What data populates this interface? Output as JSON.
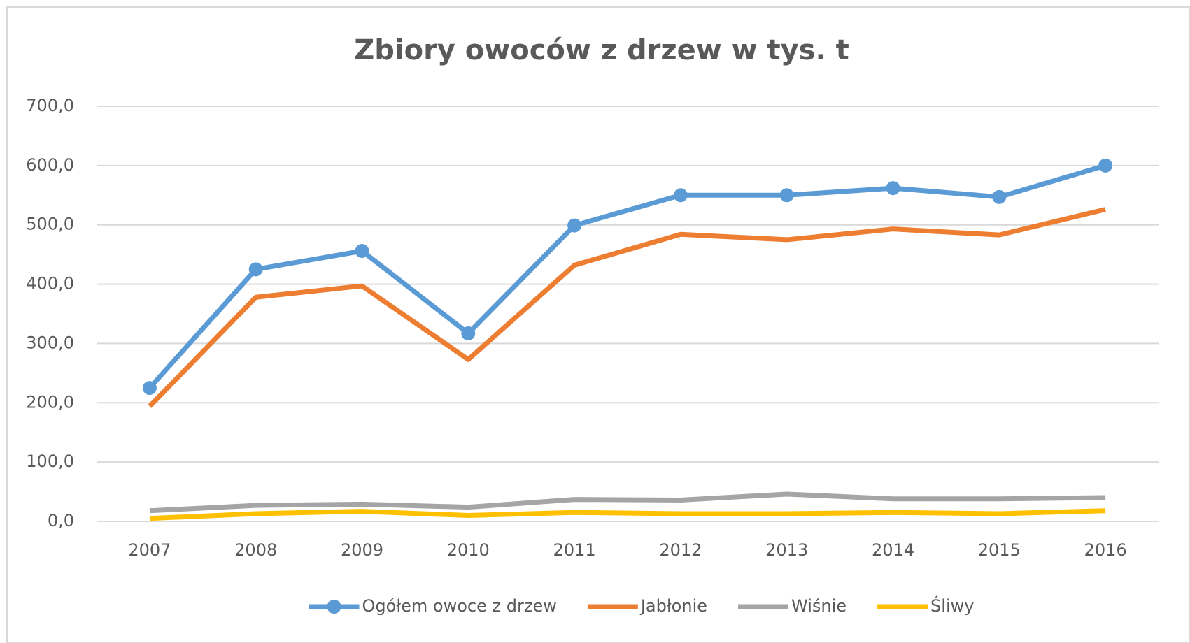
{
  "chart_data": {
    "type": "line",
    "title": "Zbiory owoców z drzew w tys. t",
    "categories": [
      "2007",
      "2008",
      "2009",
      "2010",
      "2011",
      "2012",
      "2013",
      "2014",
      "2015",
      "2016"
    ],
    "series": [
      {
        "name": "Ogółem owoce z drzew",
        "color": "#5b9bd5",
        "marker": "circle",
        "values": [
          225,
          425,
          456,
          317,
          499,
          550,
          550,
          562,
          547,
          600
        ]
      },
      {
        "name": "Jabłonie",
        "color": "#ed7d31",
        "values": [
          194,
          378,
          397,
          273,
          432,
          484,
          475,
          493,
          483,
          526
        ]
      },
      {
        "name": "Wiśnie",
        "color": "#a5a5a5",
        "values": [
          18,
          27,
          29,
          24,
          37,
          36,
          46,
          38,
          38,
          40
        ]
      },
      {
        "name": "Śliwy",
        "color": "#ffc000",
        "values": [
          5,
          13,
          17,
          10,
          15,
          13,
          13,
          15,
          13,
          18
        ]
      }
    ],
    "ylim": [
      0,
      700
    ],
    "yticks": [
      {
        "value": 0,
        "label": "0,0"
      },
      {
        "value": 100,
        "label": "100,0"
      },
      {
        "value": 200,
        "label": "200,0"
      },
      {
        "value": 300,
        "label": "300,0"
      },
      {
        "value": 400,
        "label": "400,0"
      },
      {
        "value": 500,
        "label": "500,0"
      },
      {
        "value": 600,
        "label": "600,0"
      },
      {
        "value": 700,
        "label": "700,0"
      }
    ],
    "grid": true,
    "legend": "bottom"
  }
}
